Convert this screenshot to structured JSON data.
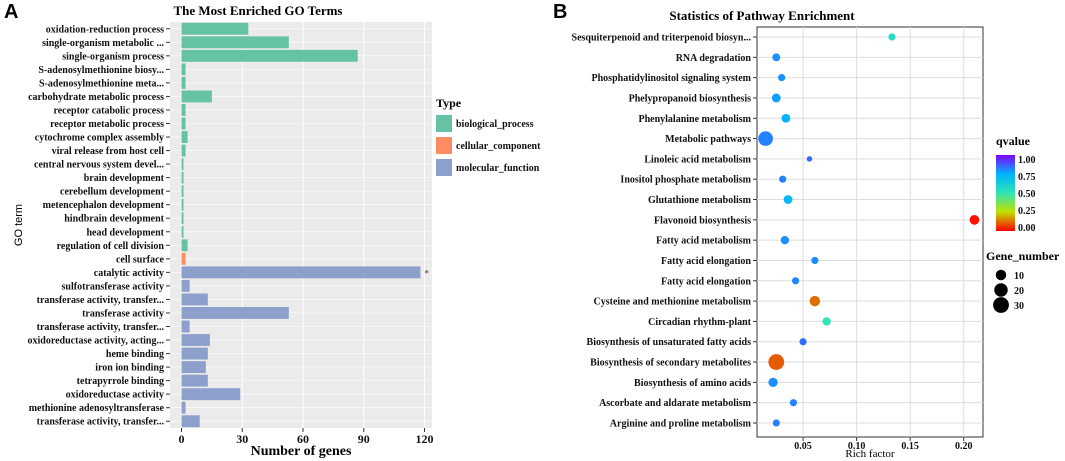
{
  "colors": {
    "biological_process": "#66c2a5",
    "cellular_component": "#fc8d62",
    "molecular_function": "#8da0cb"
  },
  "chart_data": [
    {
      "panel": "A",
      "type": "bar",
      "orientation": "horizontal",
      "title": "The Most Enriched GO Terms",
      "xlabel": "Number of genes",
      "ylabel": "GO term",
      "xlim": [
        0,
        120
      ],
      "xticks": [
        0,
        30,
        60,
        90,
        120
      ],
      "legend_title": "Type",
      "legend": [
        "biological_process",
        "cellular_component",
        "molecular_function"
      ],
      "categories": [
        "oxidation-reduction process",
        "single-organism metabolic ...",
        "single-organism process",
        "S-adenosylmethionine biosy...",
        "S-adenosylmethionine meta...",
        "carbohydrate metabolic process",
        "receptor catabolic process",
        "receptor metabolic process",
        "cytochrome complex assembly",
        "viral release from host cell",
        "central nervous system devel...",
        "brain development",
        "cerebellum development",
        "metencephalon development",
        "hindbrain development",
        "head development",
        "regulation of cell division",
        "cell surface",
        "catalytic activity",
        "sulfotransferase activity",
        "transferase activity, transfer...",
        "transferase activity",
        "transferase activity, transfer...",
        "oxidoreductase activity, acting...",
        "heme binding",
        "iron ion binding",
        "tetrapyrrole binding",
        "oxidoreductase activity",
        "methionine adenosyltransferase",
        "transferase activity, transfer..."
      ],
      "values": [
        33,
        53,
        87,
        2,
        2,
        15,
        2,
        2,
        3,
        2,
        1,
        1,
        1,
        1,
        1,
        1,
        3,
        2,
        118,
        4,
        13,
        53,
        4,
        14,
        13,
        12,
        13,
        29,
        2,
        9
      ],
      "types": [
        "biological_process",
        "biological_process",
        "biological_process",
        "biological_process",
        "biological_process",
        "biological_process",
        "biological_process",
        "biological_process",
        "biological_process",
        "biological_process",
        "biological_process",
        "biological_process",
        "biological_process",
        "biological_process",
        "biological_process",
        "biological_process",
        "biological_process",
        "cellular_component",
        "molecular_function",
        "molecular_function",
        "molecular_function",
        "molecular_function",
        "molecular_function",
        "molecular_function",
        "molecular_function",
        "molecular_function",
        "molecular_function",
        "molecular_function",
        "molecular_function",
        "molecular_function"
      ],
      "annotations": [
        {
          "category": "catalytic activity",
          "text": "*"
        }
      ]
    },
    {
      "panel": "B",
      "type": "scatter",
      "title": "Statistics of Pathway Enrichment",
      "xlabel": "Rich factor",
      "xlim": [
        0.007,
        0.218
      ],
      "xticks": [
        0.05,
        0.1,
        0.15,
        0.2
      ],
      "xtick_labels": [
        "0.05",
        "0.10",
        "0.15",
        "0.20"
      ],
      "categories": [
        "Sesquiterpenoid and triterpenoid biosyn...",
        "RNA degradation",
        "Phosphatidylinositol signaling system",
        "Phelypropanoid biosynthesis",
        "Phenylalanine metabolism",
        "Metabolic pathways",
        "Linoleic acid metabolism",
        "Inositol phosphate metabolism",
        "Glutathione metabolism",
        "Flavonoid biosynthesis",
        "Fatty acid metabolism",
        "Fatty acid elongation",
        "Fatty acid elongation",
        "Cysteine and methionine metabolism",
        "Circadian rhythm-plant",
        "Biosynthesis of unsaturated fatty acids",
        "Biosynthesis of secondary metabolites",
        "Biosynthesis of amino acids",
        "Ascorbate and aldarate metabolism",
        "Arginine and proline metabolism"
      ],
      "rich_factor": [
        0.133,
        0.025,
        0.03,
        0.025,
        0.034,
        0.015,
        0.056,
        0.031,
        0.036,
        0.21,
        0.033,
        0.061,
        0.043,
        0.061,
        0.072,
        0.05,
        0.025,
        0.022,
        0.041,
        0.025
      ],
      "qvalue": [
        0.55,
        0.8,
        0.8,
        0.78,
        0.75,
        0.82,
        0.85,
        0.82,
        0.72,
        0.02,
        0.8,
        0.8,
        0.82,
        0.12,
        0.5,
        0.85,
        0.1,
        0.8,
        0.82,
        0.82
      ],
      "gene_number": [
        3,
        4,
        3,
        6,
        6,
        25,
        1,
        3,
        6,
        8,
        5,
        3,
        3,
        10,
        5,
        3,
        30,
        7,
        3,
        3
      ],
      "color_legend": {
        "title": "qvalue",
        "ticks": [
          "1.00",
          "0.75",
          "0.50",
          "0.25",
          "0.00"
        ]
      },
      "size_legend": {
        "title": "Gene_number",
        "values": [
          "10",
          "20",
          "30"
        ]
      }
    }
  ]
}
